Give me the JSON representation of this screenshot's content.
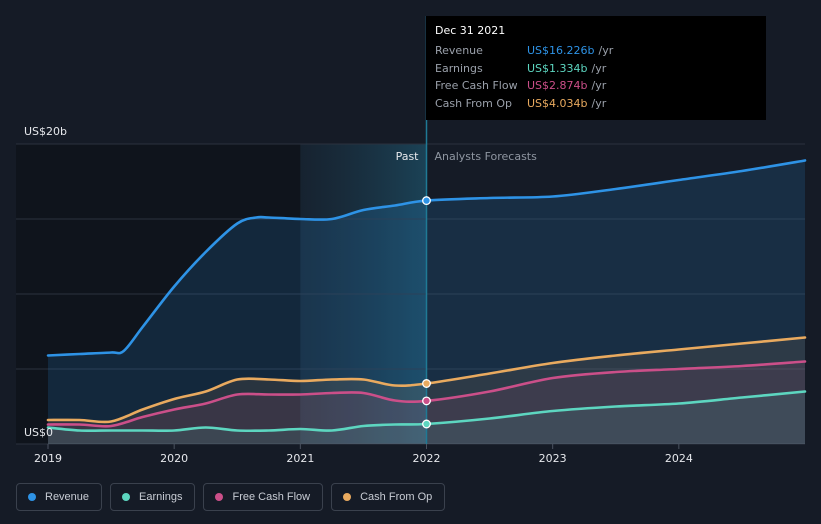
{
  "chart_data": {
    "type": "line",
    "title": "",
    "y_top_label": "US$20b",
    "y_bottom_label": "US$0",
    "ylim": [
      0,
      20
    ],
    "xlim": [
      2019.0,
      2025.0
    ],
    "x_ticks": [
      {
        "value": 2019,
        "label": "2019"
      },
      {
        "value": 2020,
        "label": "2020"
      },
      {
        "value": 2021,
        "label": "2021"
      },
      {
        "value": 2022,
        "label": "2022"
      },
      {
        "value": 2023,
        "label": "2023"
      },
      {
        "value": 2024,
        "label": "2024"
      }
    ],
    "divider_x": 2022.0,
    "highlight_start_x": 2021.0,
    "past_label": "Past",
    "forecast_label": "Analysts Forecasts",
    "series": [
      {
        "key": "revenue",
        "name": "Revenue",
        "color": "#2e93e6",
        "fill": true,
        "x": [
          2019.0,
          2019.25,
          2019.5,
          2019.6,
          2019.75,
          2020.0,
          2020.25,
          2020.5,
          2020.65,
          2020.75,
          2021.0,
          2021.25,
          2021.5,
          2021.75,
          2022.0,
          2022.5,
          2023.0,
          2023.5,
          2024.0,
          2024.5,
          2025.0
        ],
        "y": [
          5.9,
          6.0,
          6.1,
          6.2,
          7.8,
          10.5,
          12.8,
          14.7,
          15.1,
          15.1,
          15.0,
          15.0,
          15.6,
          15.9,
          16.226,
          16.4,
          16.5,
          17.0,
          17.6,
          18.2,
          18.9
        ]
      },
      {
        "key": "cash_from_op",
        "name": "Cash From Op",
        "color": "#e9aa5f",
        "fill": true,
        "x": [
          2019.0,
          2019.25,
          2019.5,
          2019.75,
          2020.0,
          2020.25,
          2020.5,
          2020.75,
          2021.0,
          2021.25,
          2021.5,
          2021.75,
          2022.0,
          2022.5,
          2023.0,
          2023.5,
          2024.0,
          2024.5,
          2025.0
        ],
        "y": [
          1.6,
          1.6,
          1.5,
          2.3,
          3.0,
          3.5,
          4.3,
          4.3,
          4.2,
          4.3,
          4.3,
          3.9,
          4.034,
          4.7,
          5.4,
          5.9,
          6.3,
          6.7,
          7.1
        ]
      },
      {
        "key": "free_cash_flow",
        "name": "Free Cash Flow",
        "color": "#cb4f89",
        "fill": true,
        "x": [
          2019.0,
          2019.25,
          2019.5,
          2019.75,
          2020.0,
          2020.25,
          2020.5,
          2020.75,
          2021.0,
          2021.25,
          2021.5,
          2021.75,
          2022.0,
          2022.5,
          2023.0,
          2023.5,
          2024.0,
          2024.5,
          2025.0
        ],
        "y": [
          1.3,
          1.3,
          1.2,
          1.8,
          2.3,
          2.7,
          3.3,
          3.3,
          3.3,
          3.4,
          3.4,
          2.9,
          2.874,
          3.5,
          4.4,
          4.8,
          5.0,
          5.2,
          5.5
        ]
      },
      {
        "key": "earnings",
        "name": "Earnings",
        "color": "#5dd6c0",
        "fill": true,
        "x": [
          2019.0,
          2019.25,
          2019.5,
          2019.75,
          2020.0,
          2020.25,
          2020.5,
          2020.75,
          2021.0,
          2021.25,
          2021.5,
          2021.75,
          2022.0,
          2022.5,
          2023.0,
          2023.5,
          2024.0,
          2024.5,
          2025.0
        ],
        "y": [
          1.1,
          0.9,
          0.9,
          0.9,
          0.9,
          1.1,
          0.9,
          0.9,
          1.0,
          0.9,
          1.2,
          1.3,
          1.334,
          1.7,
          2.2,
          2.5,
          2.7,
          3.1,
          3.5
        ]
      }
    ]
  },
  "tooltip": {
    "date": "Dec 31 2021",
    "rows": [
      {
        "label": "Revenue",
        "value": "US$16.226b",
        "unit": "/yr",
        "color": "#2e93e6"
      },
      {
        "label": "Earnings",
        "value": "US$1.334b",
        "unit": "/yr",
        "color": "#5dd6c0"
      },
      {
        "label": "Free Cash Flow",
        "value": "US$2.874b",
        "unit": "/yr",
        "color": "#cb4f89"
      },
      {
        "label": "Cash From Op",
        "value": "US$4.034b",
        "unit": "/yr",
        "color": "#e9aa5f"
      }
    ]
  },
  "legend": [
    {
      "label": "Revenue",
      "color": "#2e93e6"
    },
    {
      "label": "Earnings",
      "color": "#5dd6c0"
    },
    {
      "label": "Free Cash Flow",
      "color": "#cb4f89"
    },
    {
      "label": "Cash From Op",
      "color": "#e9aa5f"
    }
  ]
}
